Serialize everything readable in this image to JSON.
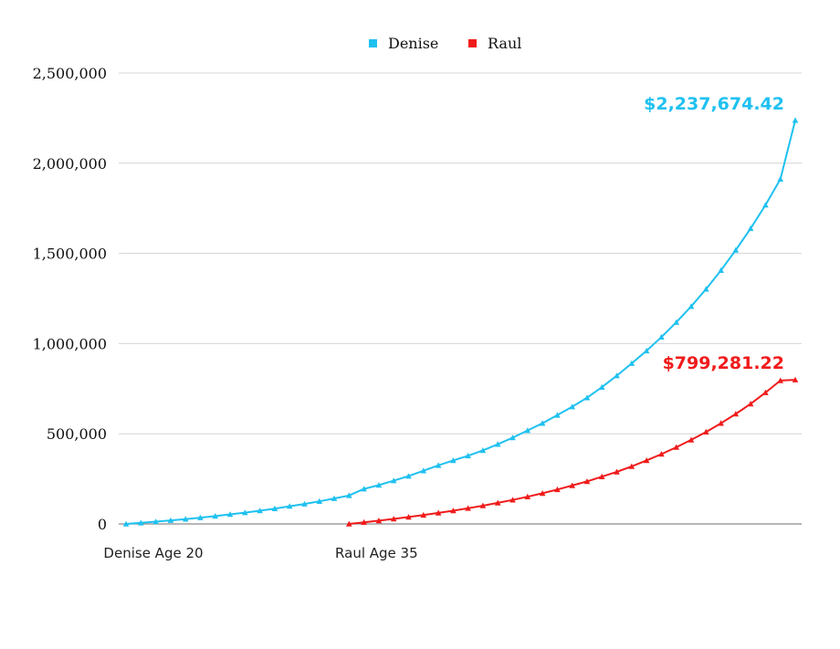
{
  "chart_data": {
    "type": "line",
    "ylim": [
      0,
      2500000
    ],
    "yticks": [
      0,
      500000,
      1000000,
      1500000,
      2000000,
      2500000
    ],
    "ytick_labels": [
      "0",
      "500,000",
      "1,000,000",
      "1,500,000",
      "2,000,000",
      "2,500,000"
    ],
    "x_labels": [
      "Denise Age 20",
      "Raul Age 35"
    ],
    "x_label_ages": [
      20,
      35
    ],
    "age_range": [
      20,
      65
    ],
    "grid": true,
    "legend_position": "top",
    "series": [
      {
        "name": "Denise",
        "color": "#1fc1f0",
        "ages": [
          20,
          21,
          22,
          23,
          24,
          25,
          26,
          27,
          28,
          29,
          30,
          31,
          32,
          33,
          34,
          35,
          36,
          37,
          38,
          39,
          40,
          41,
          42,
          43,
          44,
          45,
          46,
          47,
          48,
          49,
          50,
          51,
          52,
          53,
          54,
          55,
          56,
          57,
          58,
          59,
          60,
          61,
          62,
          63,
          64,
          65
        ],
        "values": [
          0,
          6000,
          12500,
          19500,
          27000,
          35000,
          43500,
          53000,
          63000,
          73500,
          85000,
          98000,
          111000,
          125500,
          141000,
          158000,
          194500,
          215000,
          240000,
          265000,
          295000,
          325000,
          352000,
          378000,
          408000,
          442000,
          478000,
          518000,
          558000,
          603000,
          650000,
          700000,
          758000,
          822000,
          890000,
          960000,
          1036000,
          1118000,
          1206000,
          1302000,
          1406000,
          1518000,
          1638000,
          1768000,
          1912000,
          2237674.42
        ]
      },
      {
        "name": "Raul",
        "color": "#f01b1b",
        "ages": [
          35,
          36,
          37,
          38,
          39,
          40,
          41,
          42,
          43,
          44,
          45,
          46,
          47,
          48,
          49,
          50,
          51,
          52,
          53,
          54,
          55,
          56,
          57,
          58,
          59,
          60,
          61,
          62,
          63,
          64,
          65
        ],
        "values": [
          0,
          9000,
          18000,
          28000,
          38500,
          49000,
          61000,
          73500,
          87000,
          101000,
          117000,
          133000,
          151000,
          170000,
          191000,
          213000,
          236000,
          262000,
          289000,
          319000,
          352000,
          387000,
          425000,
          466000,
          510000,
          558000,
          610000,
          666000,
          728000,
          795000,
          799281.22
        ]
      }
    ],
    "end_labels": [
      {
        "series": "Denise",
        "text": "$2,237,674.42",
        "color": "#1fc1f0"
      },
      {
        "series": "Raul",
        "text": "$799,281.22",
        "color": "#f01b1b"
      }
    ]
  }
}
